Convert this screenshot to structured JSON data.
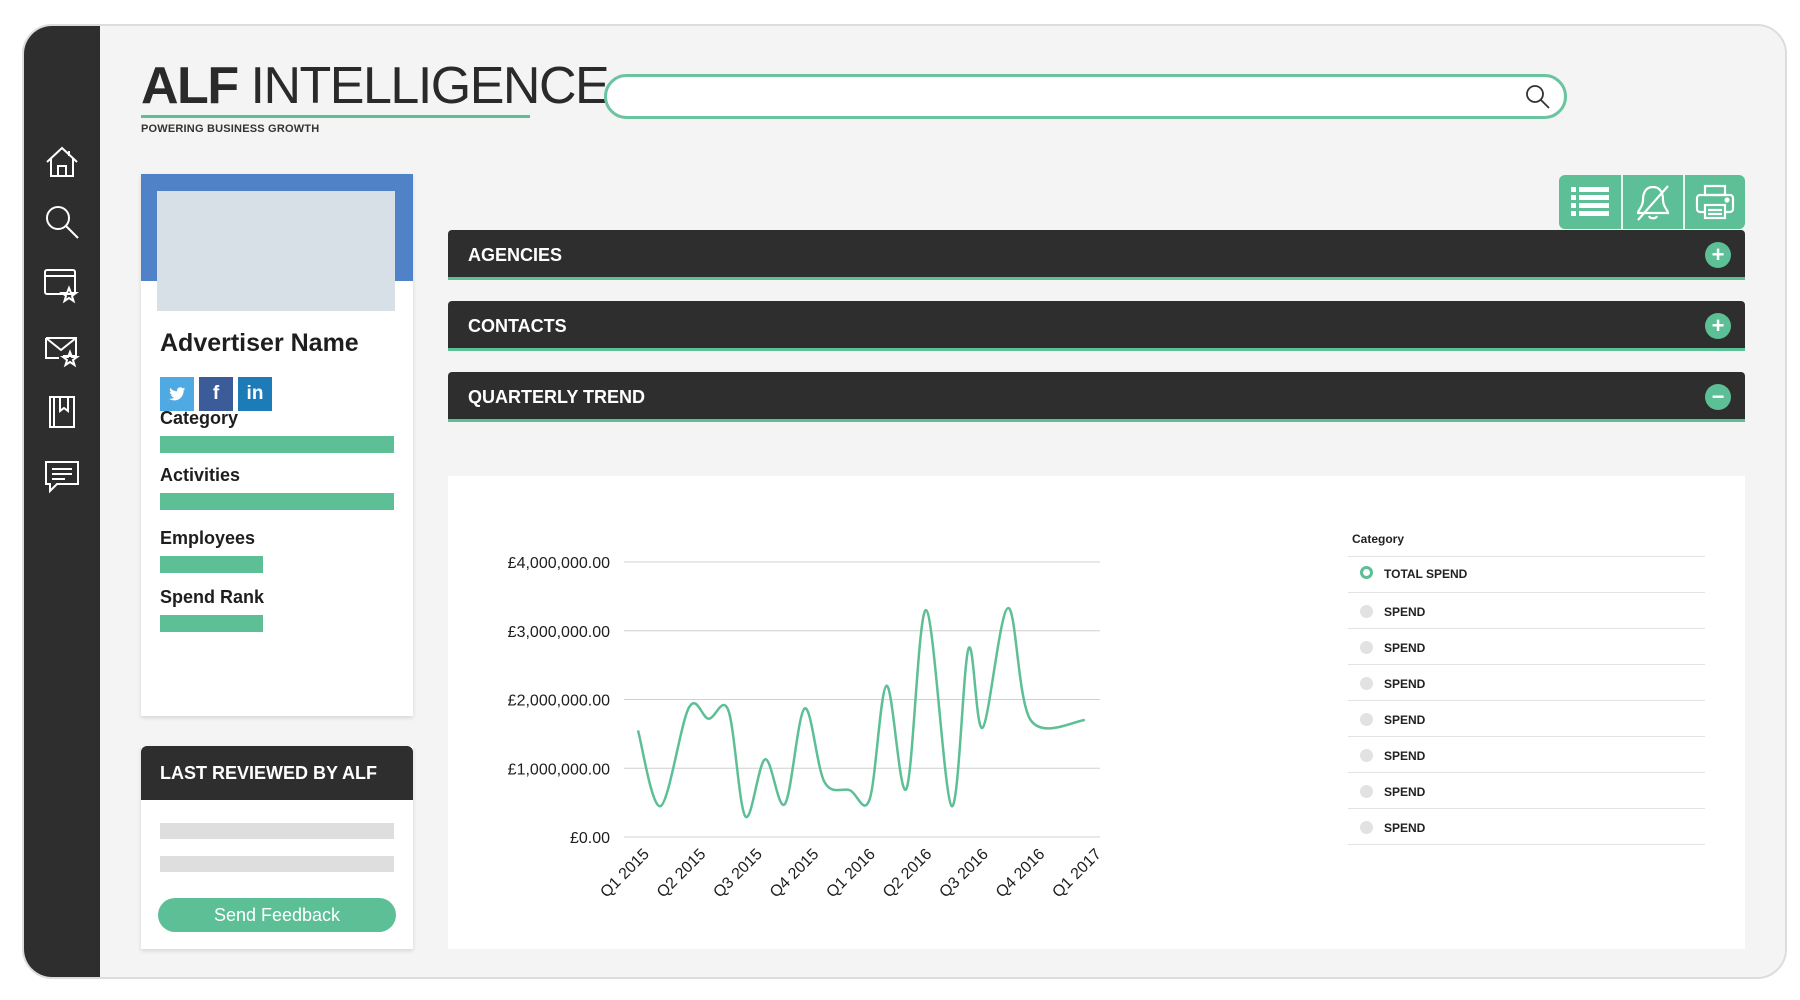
{
  "app": {
    "logo_bold": "ALF",
    "logo_light": " INTELLIGENCE",
    "tagline": "POWERING BUSINESS GROWTH"
  },
  "search": {
    "value": "",
    "placeholder": ""
  },
  "nav": [
    "home-icon",
    "search-icon",
    "watchlist-icon",
    "mail-star-icon",
    "bookmark-icon",
    "chat-icon"
  ],
  "profile": {
    "name": "Advertiser Name",
    "socials": {
      "twitter": "twitter-icon",
      "facebook": "f",
      "linkedin": "in"
    },
    "fields": {
      "category": "Category",
      "activities": "Activities",
      "employees": "Employees",
      "spend_rank": "Spend Rank"
    }
  },
  "reviewed": {
    "title": "LAST REVIEWED BY ALF",
    "feedback_label": "Send Feedback"
  },
  "toolbar": [
    "list-icon",
    "bell-off-icon",
    "printer-icon"
  ],
  "sections": {
    "agencies": {
      "title": "AGENCIES",
      "toggle": "+"
    },
    "contacts": {
      "title": "CONTACTS",
      "toggle": "+"
    },
    "trend": {
      "title": "QUARTERLY TREND",
      "toggle": "−"
    }
  },
  "colors": {
    "accent": "#5cbf95",
    "dark": "#2e2e2e",
    "brand_blue": "#4f82c6"
  },
  "chart_data": {
    "type": "line",
    "title": "",
    "xlabel": "",
    "ylabel": "",
    "ylim": [
      0,
      4000000
    ],
    "yticks": [
      "£0.00",
      "£1,000,000.00",
      "£2,000,000.00",
      "£3,000,000.00",
      "£4,000,000.00"
    ],
    "categories": [
      "Q1 2015",
      "Q2 2015",
      "Q3 2015",
      "Q4 2015",
      "Q1 2016",
      "Q2 2016",
      "Q3 2016",
      "Q4 2016",
      "Q1 2017"
    ],
    "x": [
      0,
      0.4,
      0.9,
      1.25,
      1.6,
      1.9,
      2.25,
      2.6,
      2.95,
      3.3,
      3.75,
      4.1,
      4.4,
      4.75,
      5.1,
      5.55,
      5.85,
      6.1,
      6.55,
      6.95,
      7.25,
      7.4,
      7.6,
      7.85,
      8.0
    ],
    "y": [
      1550000,
      450000,
      1880000,
      1720000,
      1840000,
      300000,
      1130000,
      480000,
      1870000,
      800000,
      680000,
      550000,
      2200000,
      700000,
      3300000,
      450000,
      2740000,
      1590000,
      3330000,
      1700000,
      1700000,
      1700000,
      1700000,
      1700000,
      1700000
    ],
    "series": [
      {
        "name": "TOTAL SPEND"
      }
    ],
    "legend": {
      "title": "Category",
      "placement": "right",
      "items": [
        "TOTAL SPEND",
        "SPEND",
        "SPEND",
        "SPEND",
        "SPEND",
        "SPEND",
        "SPEND",
        "SPEND"
      ]
    },
    "grid": true
  }
}
